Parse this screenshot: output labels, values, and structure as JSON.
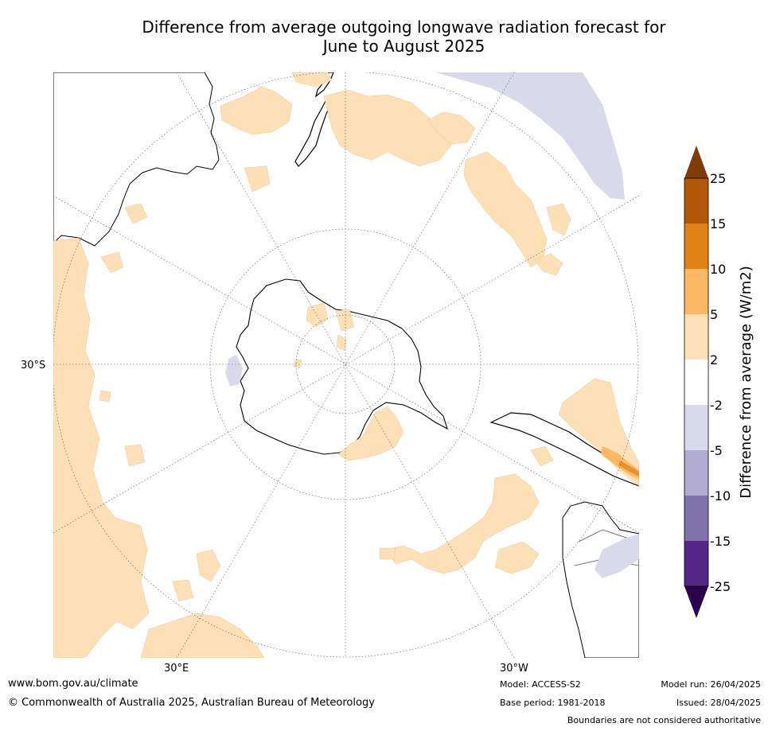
{
  "title": {
    "line1": "Difference from average outgoing longwave radiation forecast for",
    "line2": "June to August 2025"
  },
  "map": {
    "projection": "south-polar-stereographic",
    "labels": {
      "lat_30s": "30°S",
      "lon_30e": "30°E",
      "lon_30w": "30°W"
    },
    "colors": {
      "ocean": "#ffffff",
      "coast": "#000000",
      "pos_2_5": "#fde0b6",
      "pos_5_10": "#fdb863",
      "pos_10_15": "#e08214",
      "neg_2_5": "#d8daeb",
      "grid": "#555555"
    }
  },
  "legend": {
    "label": "Difference from average (W/m2)",
    "ticks": [
      "25",
      "15",
      "10",
      "5",
      "2",
      "-2",
      "-5",
      "-10",
      "-15",
      "-25"
    ],
    "colors": [
      "#b35806",
      "#e08214",
      "#fdb863",
      "#fee0b6",
      "#ffffff",
      "#d8daeb",
      "#b2abd2",
      "#8073ac",
      "#542788"
    ],
    "extend_top_color": "#7f3b08",
    "extend_bottom_color": "#2d004b"
  },
  "footer": {
    "url": "www.bom.gov.au/climate",
    "copyright": "© Commonwealth of Australia 2025, Australian Bureau of Meteorology",
    "model": "Model: ACCESS-S2",
    "base_period": "Base period: 1981-2018",
    "model_run": "Model run: 26/04/2025",
    "issued": "Issued: 28/04/2025",
    "disclaimer": "Boundaries are not considered authoritative"
  }
}
